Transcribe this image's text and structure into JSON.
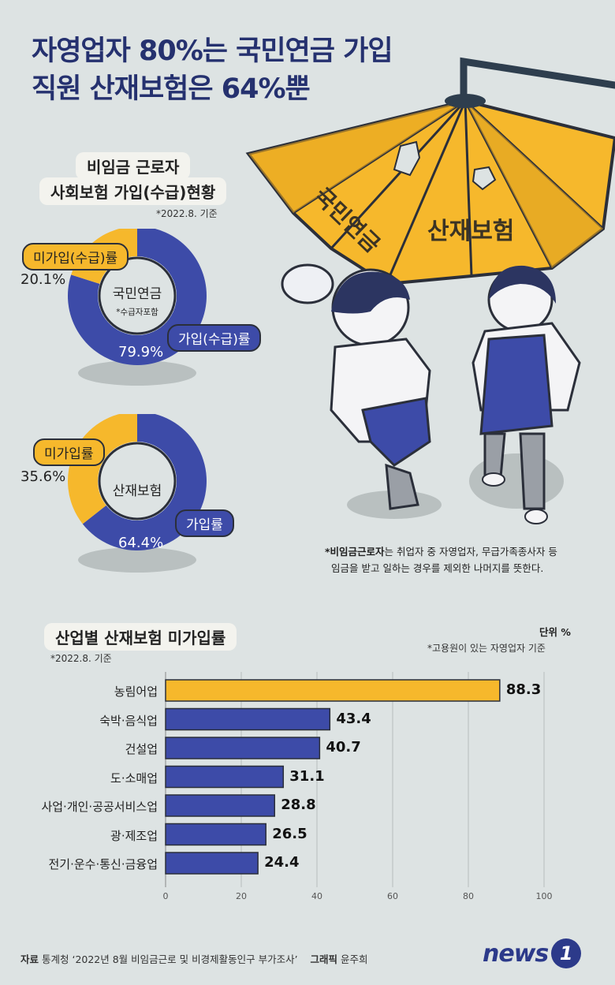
{
  "header": {
    "title_line1": "자영업자 80%는 국민연금 가입",
    "title_line2": "직원 산재보험은 64%뿐"
  },
  "illustration": {
    "umbrella_text_left": "국민연금",
    "umbrella_text_right": "산재보험"
  },
  "section1": {
    "title_line1": "비임금 근로자",
    "title_line2": "사회보험 가입(수급)현황",
    "date_note": "*2022.8. 기준"
  },
  "donut1": {
    "center_label": "국민연금",
    "center_sub": "*수급자포함",
    "unjoined_label": "미가입(수급)률",
    "joined_label": "가입(수급)률",
    "unjoined_pct_text": "20.1%",
    "joined_pct_text": "79.9%",
    "joined_value": 79.9,
    "unjoined_value": 20.1
  },
  "donut2": {
    "center_label": "산재보험",
    "unjoined_label": "미가입률",
    "joined_label": "가입률",
    "unjoined_pct_text": "35.6%",
    "joined_pct_text": "64.4%",
    "joined_value": 64.4,
    "unjoined_value": 35.6
  },
  "footnote": {
    "bold": "*비임금근로자",
    "rest1": "는 취업자 중 자영업자, 무급가족종사자 등",
    "line2": "임금을 받고 일하는 경우를 제외한 나머지를 뜻한다."
  },
  "section2": {
    "title": "산업별 산재보험 미가입률",
    "date_note": "*2022.8. 기준",
    "unit": "단위 %",
    "unit_note": "*고용원이 있는 자영업자 기준"
  },
  "colors": {
    "navy": "#25316f",
    "blue": "#3d4ba8",
    "yellow": "#f6b82c",
    "light": "#dde3e3"
  },
  "chart_data": [
    {
      "type": "pie",
      "title": "국민연금",
      "categories": [
        "가입(수급)률",
        "미가입(수급)률"
      ],
      "values": [
        79.9,
        20.1
      ]
    },
    {
      "type": "pie",
      "title": "산재보험",
      "categories": [
        "가입률",
        "미가입률"
      ],
      "values": [
        64.4,
        35.6
      ]
    },
    {
      "type": "bar",
      "orientation": "horizontal",
      "title": "산업별 산재보험 미가입률",
      "categories": [
        "농림어업",
        "숙박·음식업",
        "건설업",
        "도·소매업",
        "사업·개인·공공서비스업",
        "광·제조업",
        "전기·운수·통신·금융업"
      ],
      "values": [
        88.3,
        43.4,
        40.7,
        31.1,
        28.8,
        26.5,
        24.4
      ],
      "value_labels": [
        "88.3",
        "43.4",
        "40.7",
        "31.1",
        "28.8",
        "26.5",
        "24.4"
      ],
      "xlim": [
        0,
        100
      ],
      "ticks": [
        "0",
        "20",
        "40",
        "60",
        "80",
        "100"
      ],
      "highlight_index": 0
    }
  ],
  "footer": {
    "source_label": "자료",
    "source_text": "통계청 ‘2022년 8월 비임금근로 및 비경제활동인구 부가조사’",
    "credit_label": "그래픽",
    "credit_name": "윤주희",
    "logo_text": "news",
    "logo_num": "1"
  }
}
